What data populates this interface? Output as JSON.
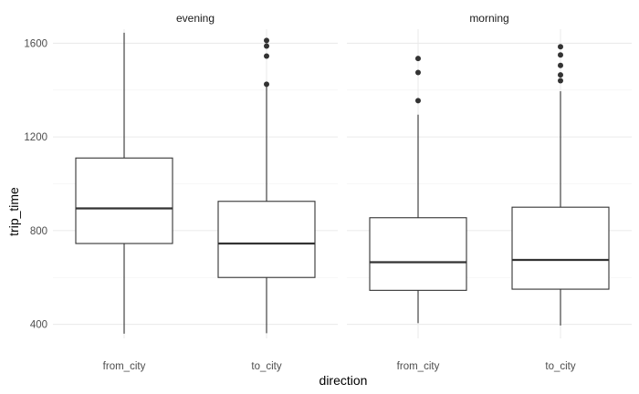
{
  "chart_data": {
    "type": "boxplot",
    "xlabel": "direction",
    "ylabel": "trip_time",
    "ylim": [
      340,
      1660
    ],
    "y_ticks": [
      400,
      800,
      1200,
      1600
    ],
    "categories": [
      "from_city",
      "to_city"
    ],
    "grid": true,
    "facets": [
      {
        "title": "evening",
        "boxes": [
          {
            "category": "from_city",
            "lower_whisker": 360,
            "q1": 745,
            "median": 895,
            "q3": 1110,
            "upper_whisker": 1645,
            "outliers": []
          },
          {
            "category": "to_city",
            "lower_whisker": 362,
            "q1": 600,
            "median": 745,
            "q3": 925,
            "upper_whisker": 1415,
            "outliers": [
              1425,
              1545,
              1588,
              1612
            ]
          }
        ]
      },
      {
        "title": "morning",
        "boxes": [
          {
            "category": "from_city",
            "lower_whisker": 405,
            "q1": 545,
            "median": 665,
            "q3": 855,
            "upper_whisker": 1295,
            "outliers": [
              1355,
              1475,
              1535
            ]
          },
          {
            "category": "to_city",
            "lower_whisker": 395,
            "q1": 550,
            "median": 675,
            "q3": 900,
            "upper_whisker": 1395,
            "outliers": [
              1440,
              1465,
              1505,
              1550,
              1585
            ]
          }
        ]
      }
    ]
  }
}
